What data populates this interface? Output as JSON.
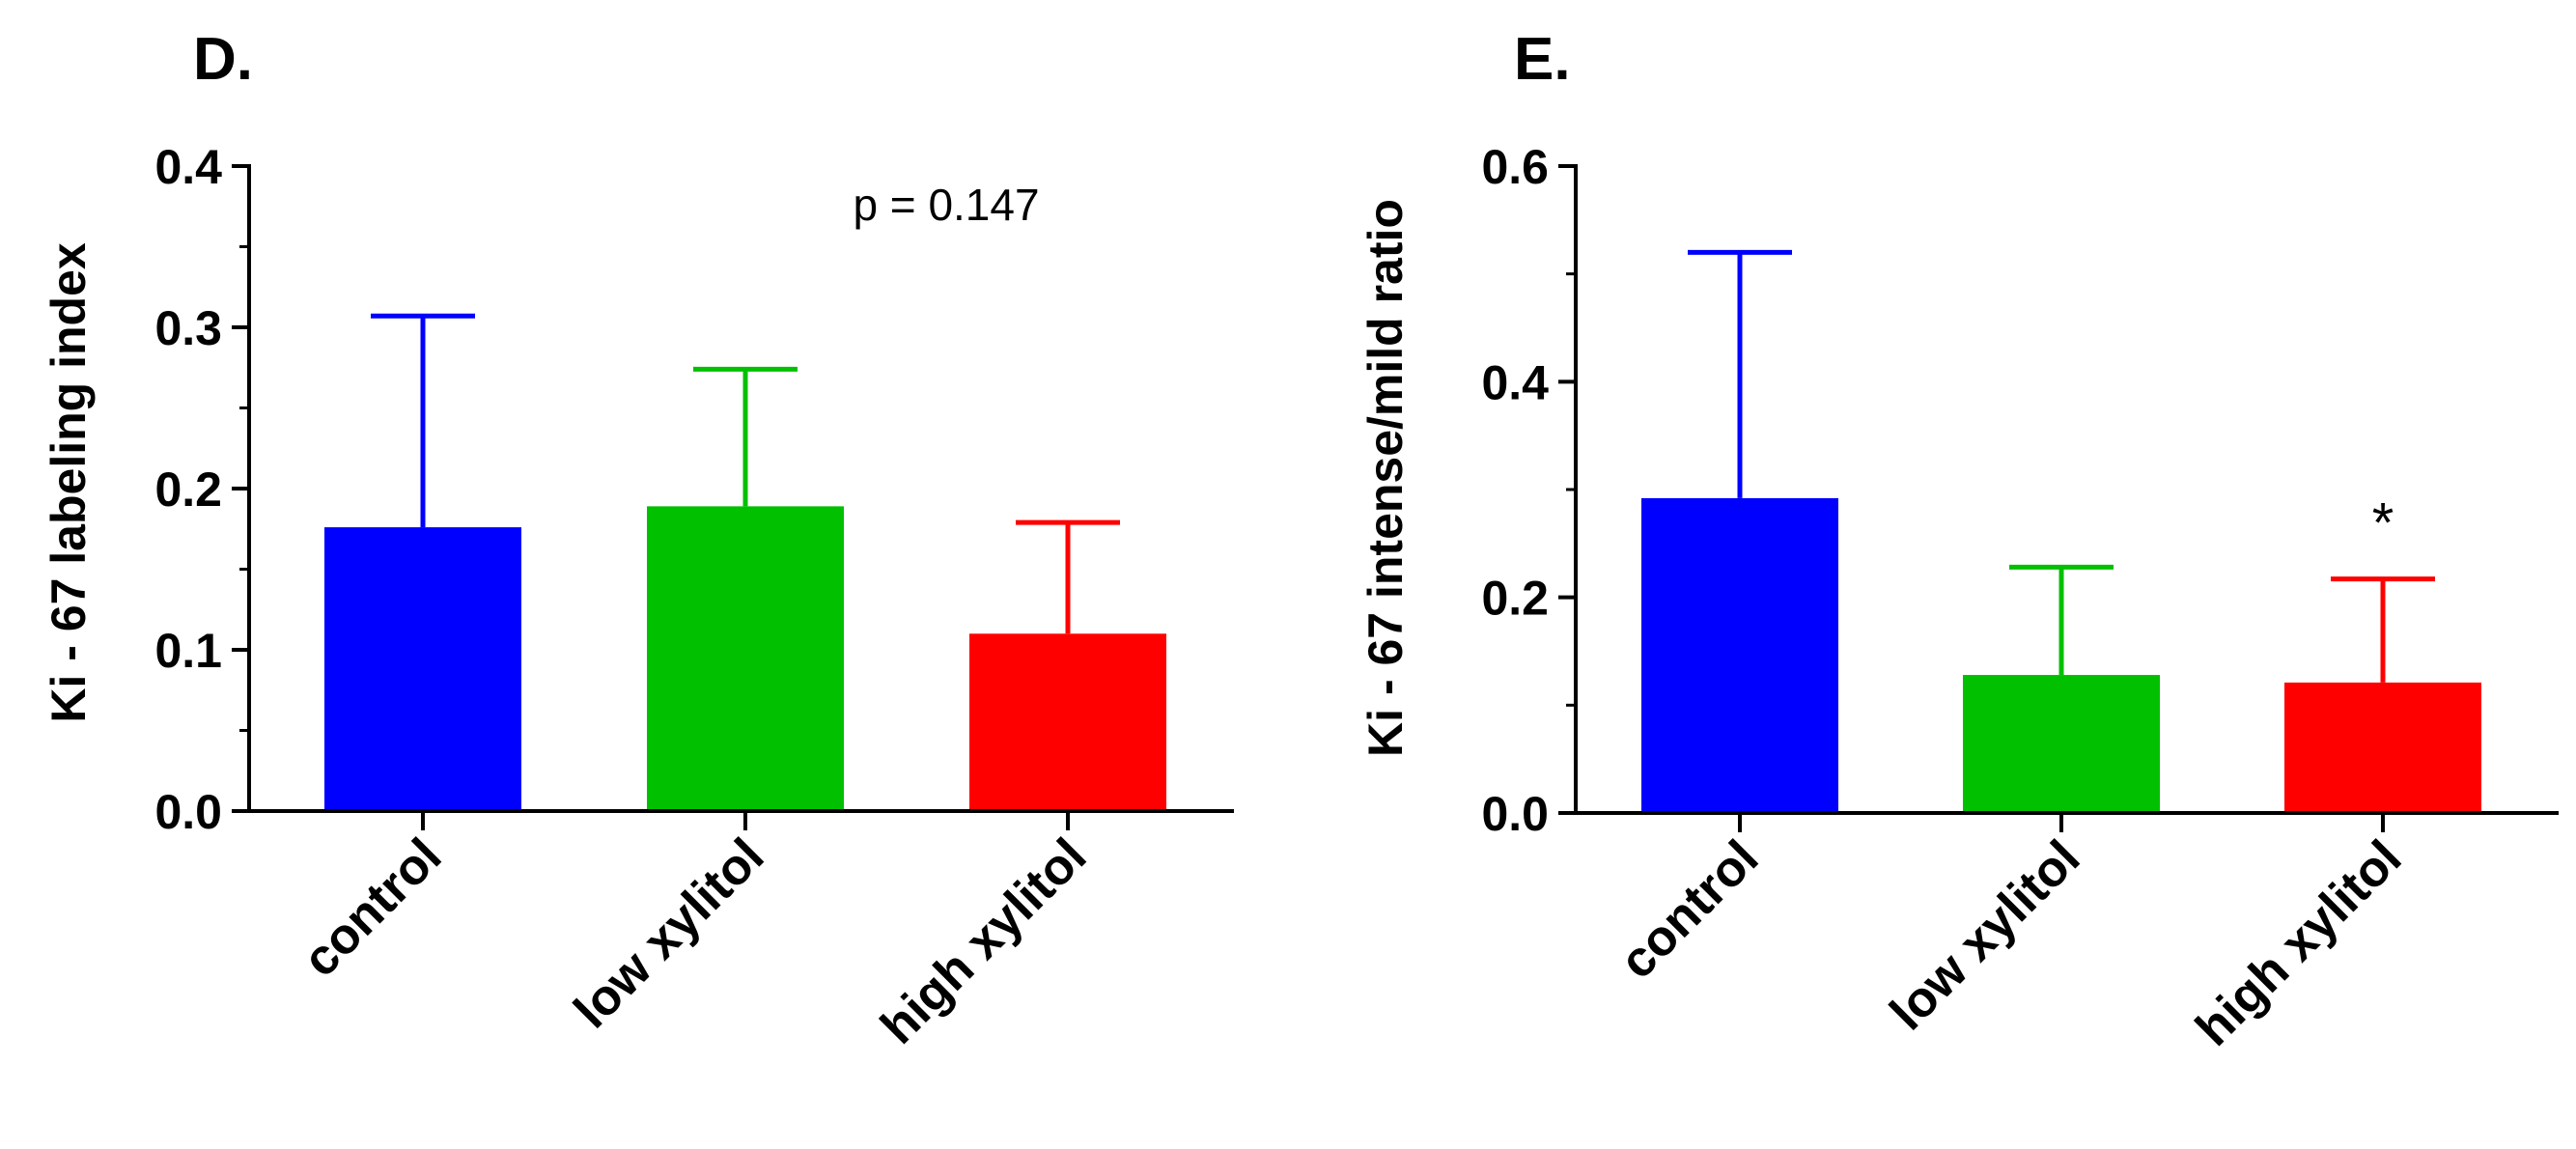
{
  "chart_data": [
    {
      "type": "bar",
      "panel_label": "D.",
      "ylabel": "Ki - 67 labeling index",
      "categories": [
        "control",
        "low xylitol",
        "high xylitol"
      ],
      "values": [
        0.176,
        0.189,
        0.11
      ],
      "errors": [
        0.131,
        0.085,
        0.069
      ],
      "colors": [
        "#0000ff",
        "#00c000",
        "#ff0000"
      ],
      "ylim": [
        0,
        0.4
      ],
      "yticks": [
        0.0,
        0.1,
        0.2,
        0.3,
        0.4
      ],
      "ytick_labels": [
        "0.0",
        "0.1",
        "0.2",
        "0.3",
        "0.4"
      ],
      "annotation": "p = 0.147",
      "bar_markers": [
        "",
        "",
        ""
      ]
    },
    {
      "type": "bar",
      "panel_label": "E.",
      "ylabel": "Ki - 67 intense/mild ratio",
      "categories": [
        "control",
        "low xylitol",
        "high xylitol"
      ],
      "values": [
        0.292,
        0.128,
        0.121
      ],
      "errors": [
        0.228,
        0.1,
        0.096
      ],
      "colors": [
        "#0000ff",
        "#00c000",
        "#ff0000"
      ],
      "ylim": [
        0,
        0.6
      ],
      "yticks": [
        0.0,
        0.2,
        0.4,
        0.6
      ],
      "ytick_labels": [
        "0.0",
        "0.2",
        "0.4",
        "0.6"
      ],
      "annotation": "",
      "bar_markers": [
        "",
        "",
        "*"
      ]
    }
  ]
}
